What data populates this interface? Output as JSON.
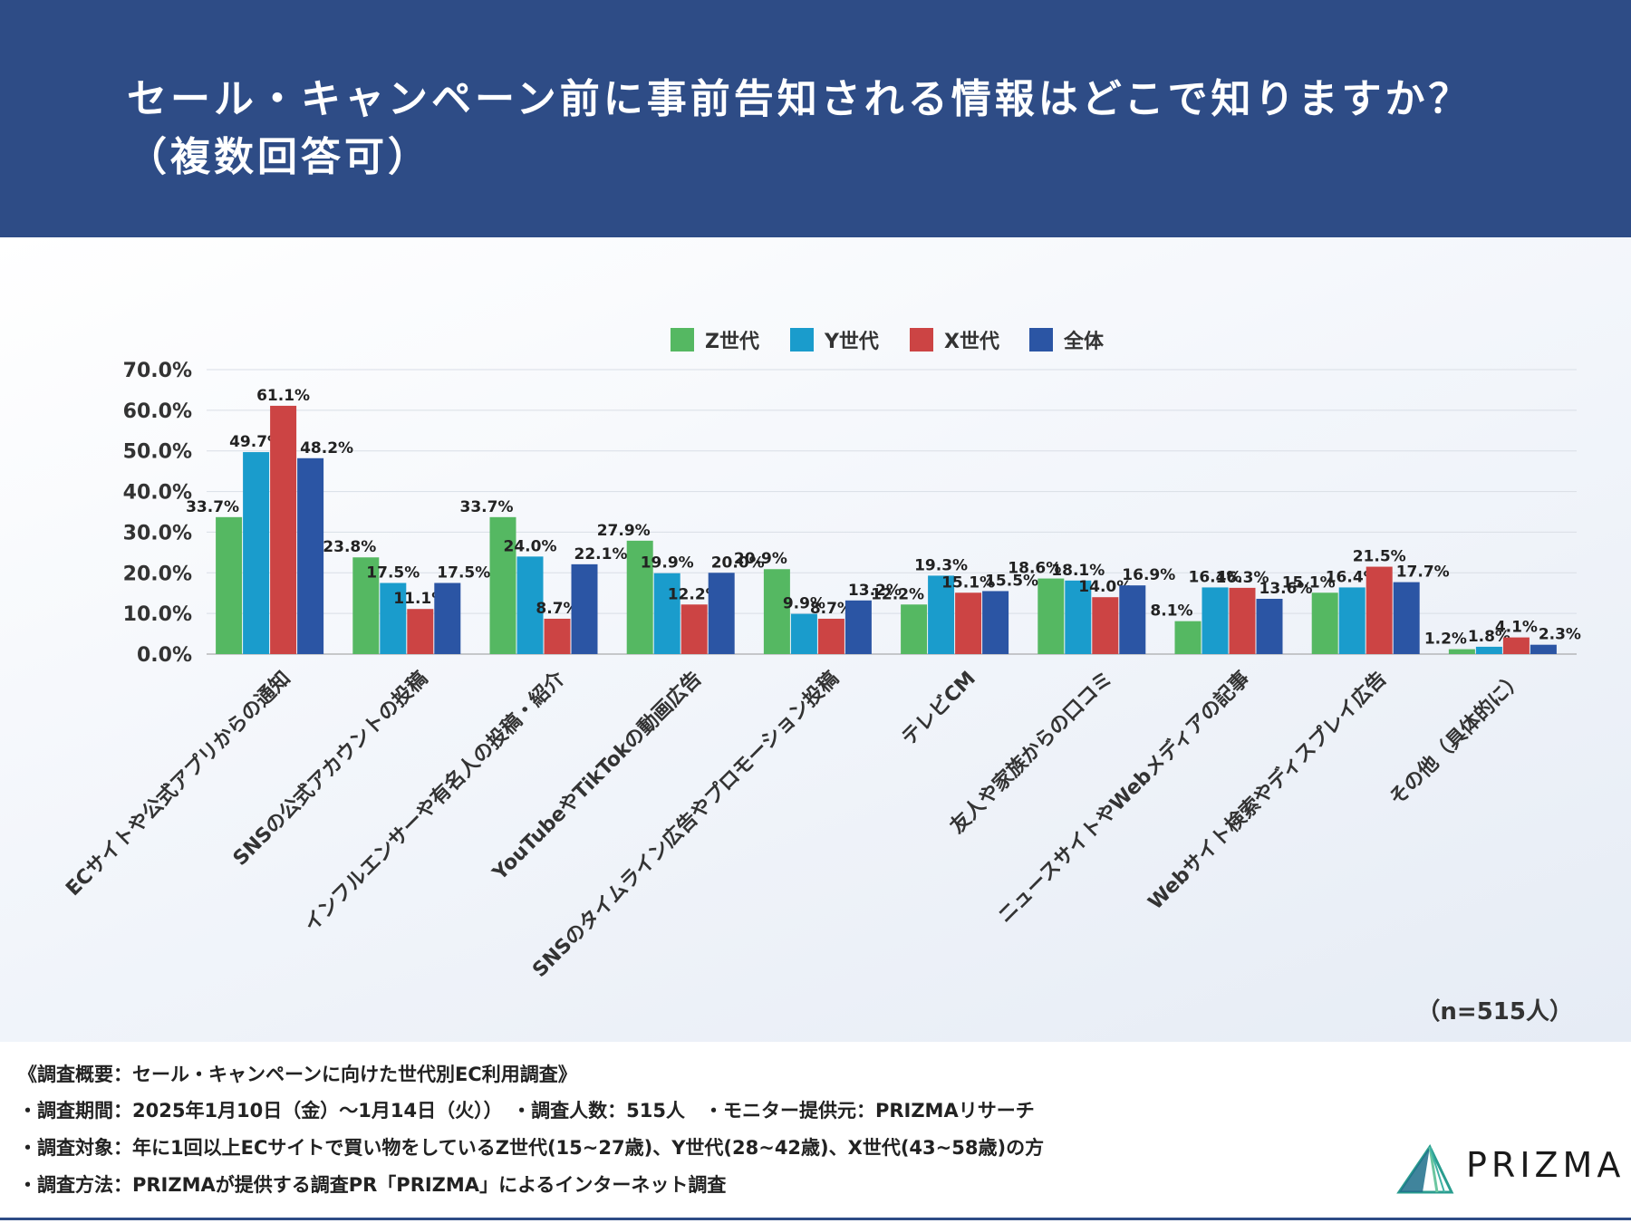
{
  "header": {
    "title": "セール・キャンペーン前に事前告知される情報はどこで知りますか？\n（複数回答可）"
  },
  "chart_data": {
    "type": "bar",
    "title": "セール・キャンペーン前に事前告知される情報はどこで知りますか？（複数回答可）",
    "xlabel": "",
    "ylabel": "",
    "ylim": [
      0,
      70
    ],
    "yticks": [
      "0.0%",
      "10.0%",
      "20.0%",
      "30.0%",
      "40.0%",
      "50.0%",
      "60.0%",
      "70.0%"
    ],
    "grid": true,
    "legend_position": "top-center",
    "categories": [
      "ECサイトや公式アプリからの通知",
      "SNSの公式アカウントの投稿",
      "インフルエンサーや有名人の投稿・紹介",
      "YouTubeやTikTokの動画広告",
      "SNSのタイムライン広告やプロモーション投稿",
      "テレビCM",
      "友人や家族からの口コミ",
      "ニュースサイトやWebメディアの記事",
      "Webサイト検索やディスプレイ広告",
      "その他（具体的に）"
    ],
    "series": [
      {
        "name": "Z世代",
        "color": "#55b862",
        "values": [
          33.7,
          23.8,
          33.7,
          27.9,
          20.9,
          12.2,
          18.6,
          8.1,
          15.1,
          1.2
        ]
      },
      {
        "name": "Y世代",
        "color": "#1a9ccc",
        "values": [
          49.7,
          17.5,
          24.0,
          19.9,
          9.9,
          19.3,
          18.1,
          16.4,
          16.4,
          1.8
        ]
      },
      {
        "name": "X世代",
        "color": "#cc4444",
        "values": [
          61.1,
          11.1,
          8.7,
          12.2,
          8.7,
          15.1,
          14.0,
          16.3,
          21.5,
          4.1
        ]
      },
      {
        "name": "全体",
        "color": "#2b55a4",
        "values": [
          48.2,
          17.5,
          22.1,
          20.0,
          13.2,
          15.5,
          16.9,
          13.6,
          17.7,
          2.3
        ]
      }
    ],
    "sample_size": "（n=515人）"
  },
  "footer": {
    "lines": [
      "《調査概要：セール・キャンペーンに向けた世代別EC利用調査》",
      "・調査期間：2025年1月10日（金）〜1月14日（火））　・調査人数：515人　・モニター提供元：PRIZMAリサーチ",
      "・調査対象：年に1回以上ECサイトで買い物をしているZ世代(15~27歳)、Y世代(28~42歳)、X世代(43~58歳)の方",
      "・調査方法：PRIZMAが提供する調査PR「PRIZMA」によるインターネット調査"
    ],
    "logo_text": "PRIZMA"
  }
}
